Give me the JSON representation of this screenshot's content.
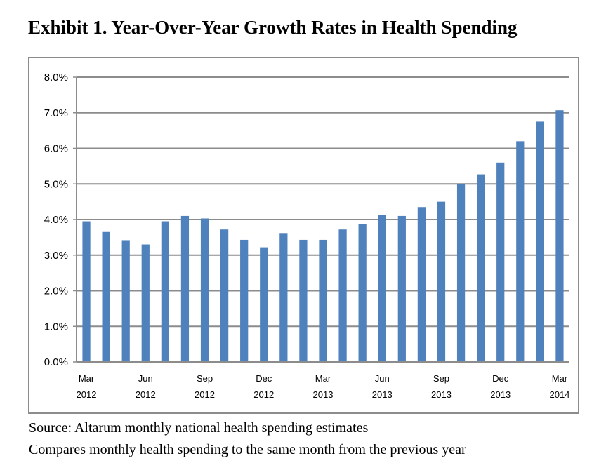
{
  "title": "Exhibit 1. Year-Over-Year Growth Rates in Health Spending",
  "notes": {
    "source": "Source: Altarum monthly national health spending estimates",
    "compare": "Compares monthly health spending to the same month from the previous year"
  },
  "colors": {
    "bar": "#4f81bd",
    "gridline": "#8c8c8c",
    "frame": "#8c8c8c"
  },
  "chart_data": {
    "type": "bar",
    "grid": true,
    "legend": "none",
    "ylim": [
      0,
      8
    ],
    "y_ticks": [
      "0.0%",
      "1.0%",
      "2.0%",
      "3.0%",
      "4.0%",
      "5.0%",
      "6.0%",
      "7.0%",
      "8.0%"
    ],
    "x_tick_labels": [
      {
        "index": 0,
        "month": "Mar",
        "year": "2012"
      },
      {
        "index": 3,
        "month": "Jun",
        "year": "2012"
      },
      {
        "index": 6,
        "month": "Sep",
        "year": "2012"
      },
      {
        "index": 9,
        "month": "Dec",
        "year": "2012"
      },
      {
        "index": 12,
        "month": "Mar",
        "year": "2013"
      },
      {
        "index": 15,
        "month": "Jun",
        "year": "2013"
      },
      {
        "index": 18,
        "month": "Sep",
        "year": "2013"
      },
      {
        "index": 21,
        "month": "Dec",
        "year": "2013"
      },
      {
        "index": 24,
        "month": "Mar",
        "year": "2014"
      }
    ],
    "categories": [
      "Mar 2012",
      "Apr 2012",
      "May 2012",
      "Jun 2012",
      "Jul 2012",
      "Aug 2012",
      "Sep 2012",
      "Oct 2012",
      "Nov 2012",
      "Dec 2012",
      "Jan 2013",
      "Feb 2013",
      "Mar 2013",
      "Apr 2013",
      "May 2013",
      "Jun 2013",
      "Jul 2013",
      "Aug 2013",
      "Sep 2013",
      "Oct 2013",
      "Nov 2013",
      "Dec 2013",
      "Jan 2014",
      "Feb 2014",
      "Mar 2014"
    ],
    "values": [
      3.95,
      3.65,
      3.42,
      3.3,
      3.95,
      4.1,
      4.03,
      3.72,
      3.43,
      3.22,
      3.62,
      3.43,
      3.43,
      3.72,
      3.87,
      4.12,
      4.1,
      4.35,
      4.5,
      5.0,
      5.27,
      5.6,
      6.2,
      6.75,
      7.07
    ]
  }
}
